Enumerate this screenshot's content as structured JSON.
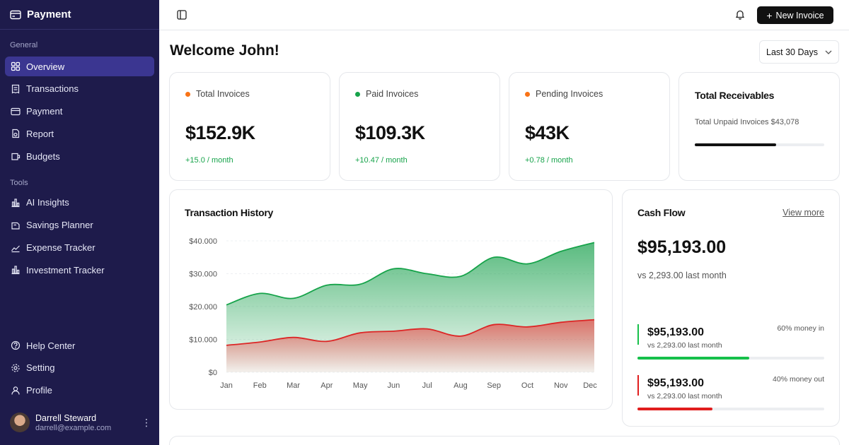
{
  "app": {
    "title": "Payment"
  },
  "sidebar": {
    "general_label": "General",
    "general_items": [
      {
        "label": "Overview",
        "icon": "grid-icon",
        "active": true
      },
      {
        "label": "Transactions",
        "icon": "receipt-icon"
      },
      {
        "label": "Payment",
        "icon": "card-icon"
      },
      {
        "label": "Report",
        "icon": "report-icon"
      },
      {
        "label": "Budgets",
        "icon": "wallet-icon"
      }
    ],
    "tools_label": "Tools",
    "tools_items": [
      {
        "label": "AI Insights",
        "icon": "bar-chart-icon"
      },
      {
        "label": "Savings Planner",
        "icon": "piggy-icon"
      },
      {
        "label": "Expense Tracker",
        "icon": "trend-icon"
      },
      {
        "label": "Investment Tracker",
        "icon": "bar-chart-icon"
      }
    ],
    "bottom_items": [
      {
        "label": "Help Center",
        "icon": "help-icon"
      },
      {
        "label": "Setting",
        "icon": "gear-icon"
      },
      {
        "label": "Profile",
        "icon": "user-icon"
      }
    ],
    "user": {
      "name": "Darrell Steward",
      "email": "darrell@example.com"
    }
  },
  "header": {
    "new_invoice_label": "New Invoice",
    "welcome": "Welcome John!",
    "range_label": "Last 30 Days"
  },
  "stats": [
    {
      "label": "Total Invoices",
      "value": "$152.9K",
      "change": "+15.0 / month",
      "dot_color": "#f97316"
    },
    {
      "label": "Paid Invoices",
      "value": "$109.3K",
      "change": "+10.47 / month",
      "dot_color": "#16a34a"
    },
    {
      "label": "Pending Invoices",
      "value": "$43K",
      "change": "+0.78 / month",
      "dot_color": "#f97316"
    }
  ],
  "receivables": {
    "title": "Total Receivables",
    "subtitle": "Total Unpaid Invoices $43,078",
    "progress": 0.63
  },
  "transaction_history": {
    "title": "Transaction History"
  },
  "chart_data": {
    "type": "area",
    "title": "Transaction History",
    "categories": [
      "Jan",
      "Feb",
      "Mar",
      "Apr",
      "May",
      "Jun",
      "Jul",
      "Aug",
      "Sep",
      "Oct",
      "Nov",
      "Dec"
    ],
    "y_ticks": [
      "$0",
      "$10.000",
      "$20.000",
      "$30.000",
      "$40.000"
    ],
    "ylim": [
      0,
      40000
    ],
    "grid": true,
    "series": [
      {
        "values": [
          20500,
          24000,
          22500,
          26500,
          26800,
          31500,
          30000,
          29200,
          35000,
          33000,
          36800,
          39500
        ],
        "color": "#16a34a"
      },
      {
        "values": [
          8200,
          9200,
          10600,
          9400,
          12000,
          12500,
          13200,
          11000,
          14500,
          13800,
          15200,
          16000
        ],
        "color": "#dc2626"
      }
    ]
  },
  "cash_flow": {
    "title": "Cash Flow",
    "view_more": "View more",
    "amount": "$95,193.00",
    "compare": "vs 2,293.00 last month",
    "money_in": {
      "amount": "$95,193.00",
      "compare": "vs 2,293.00 last month",
      "pct_label": "60% money in",
      "fraction": 0.6,
      "color": "#16c04a"
    },
    "money_out": {
      "amount": "$95,193.00",
      "compare": "vs 2,293.00 last month",
      "pct_label": "40% money out",
      "fraction": 0.4,
      "color": "#e11d1d"
    }
  }
}
